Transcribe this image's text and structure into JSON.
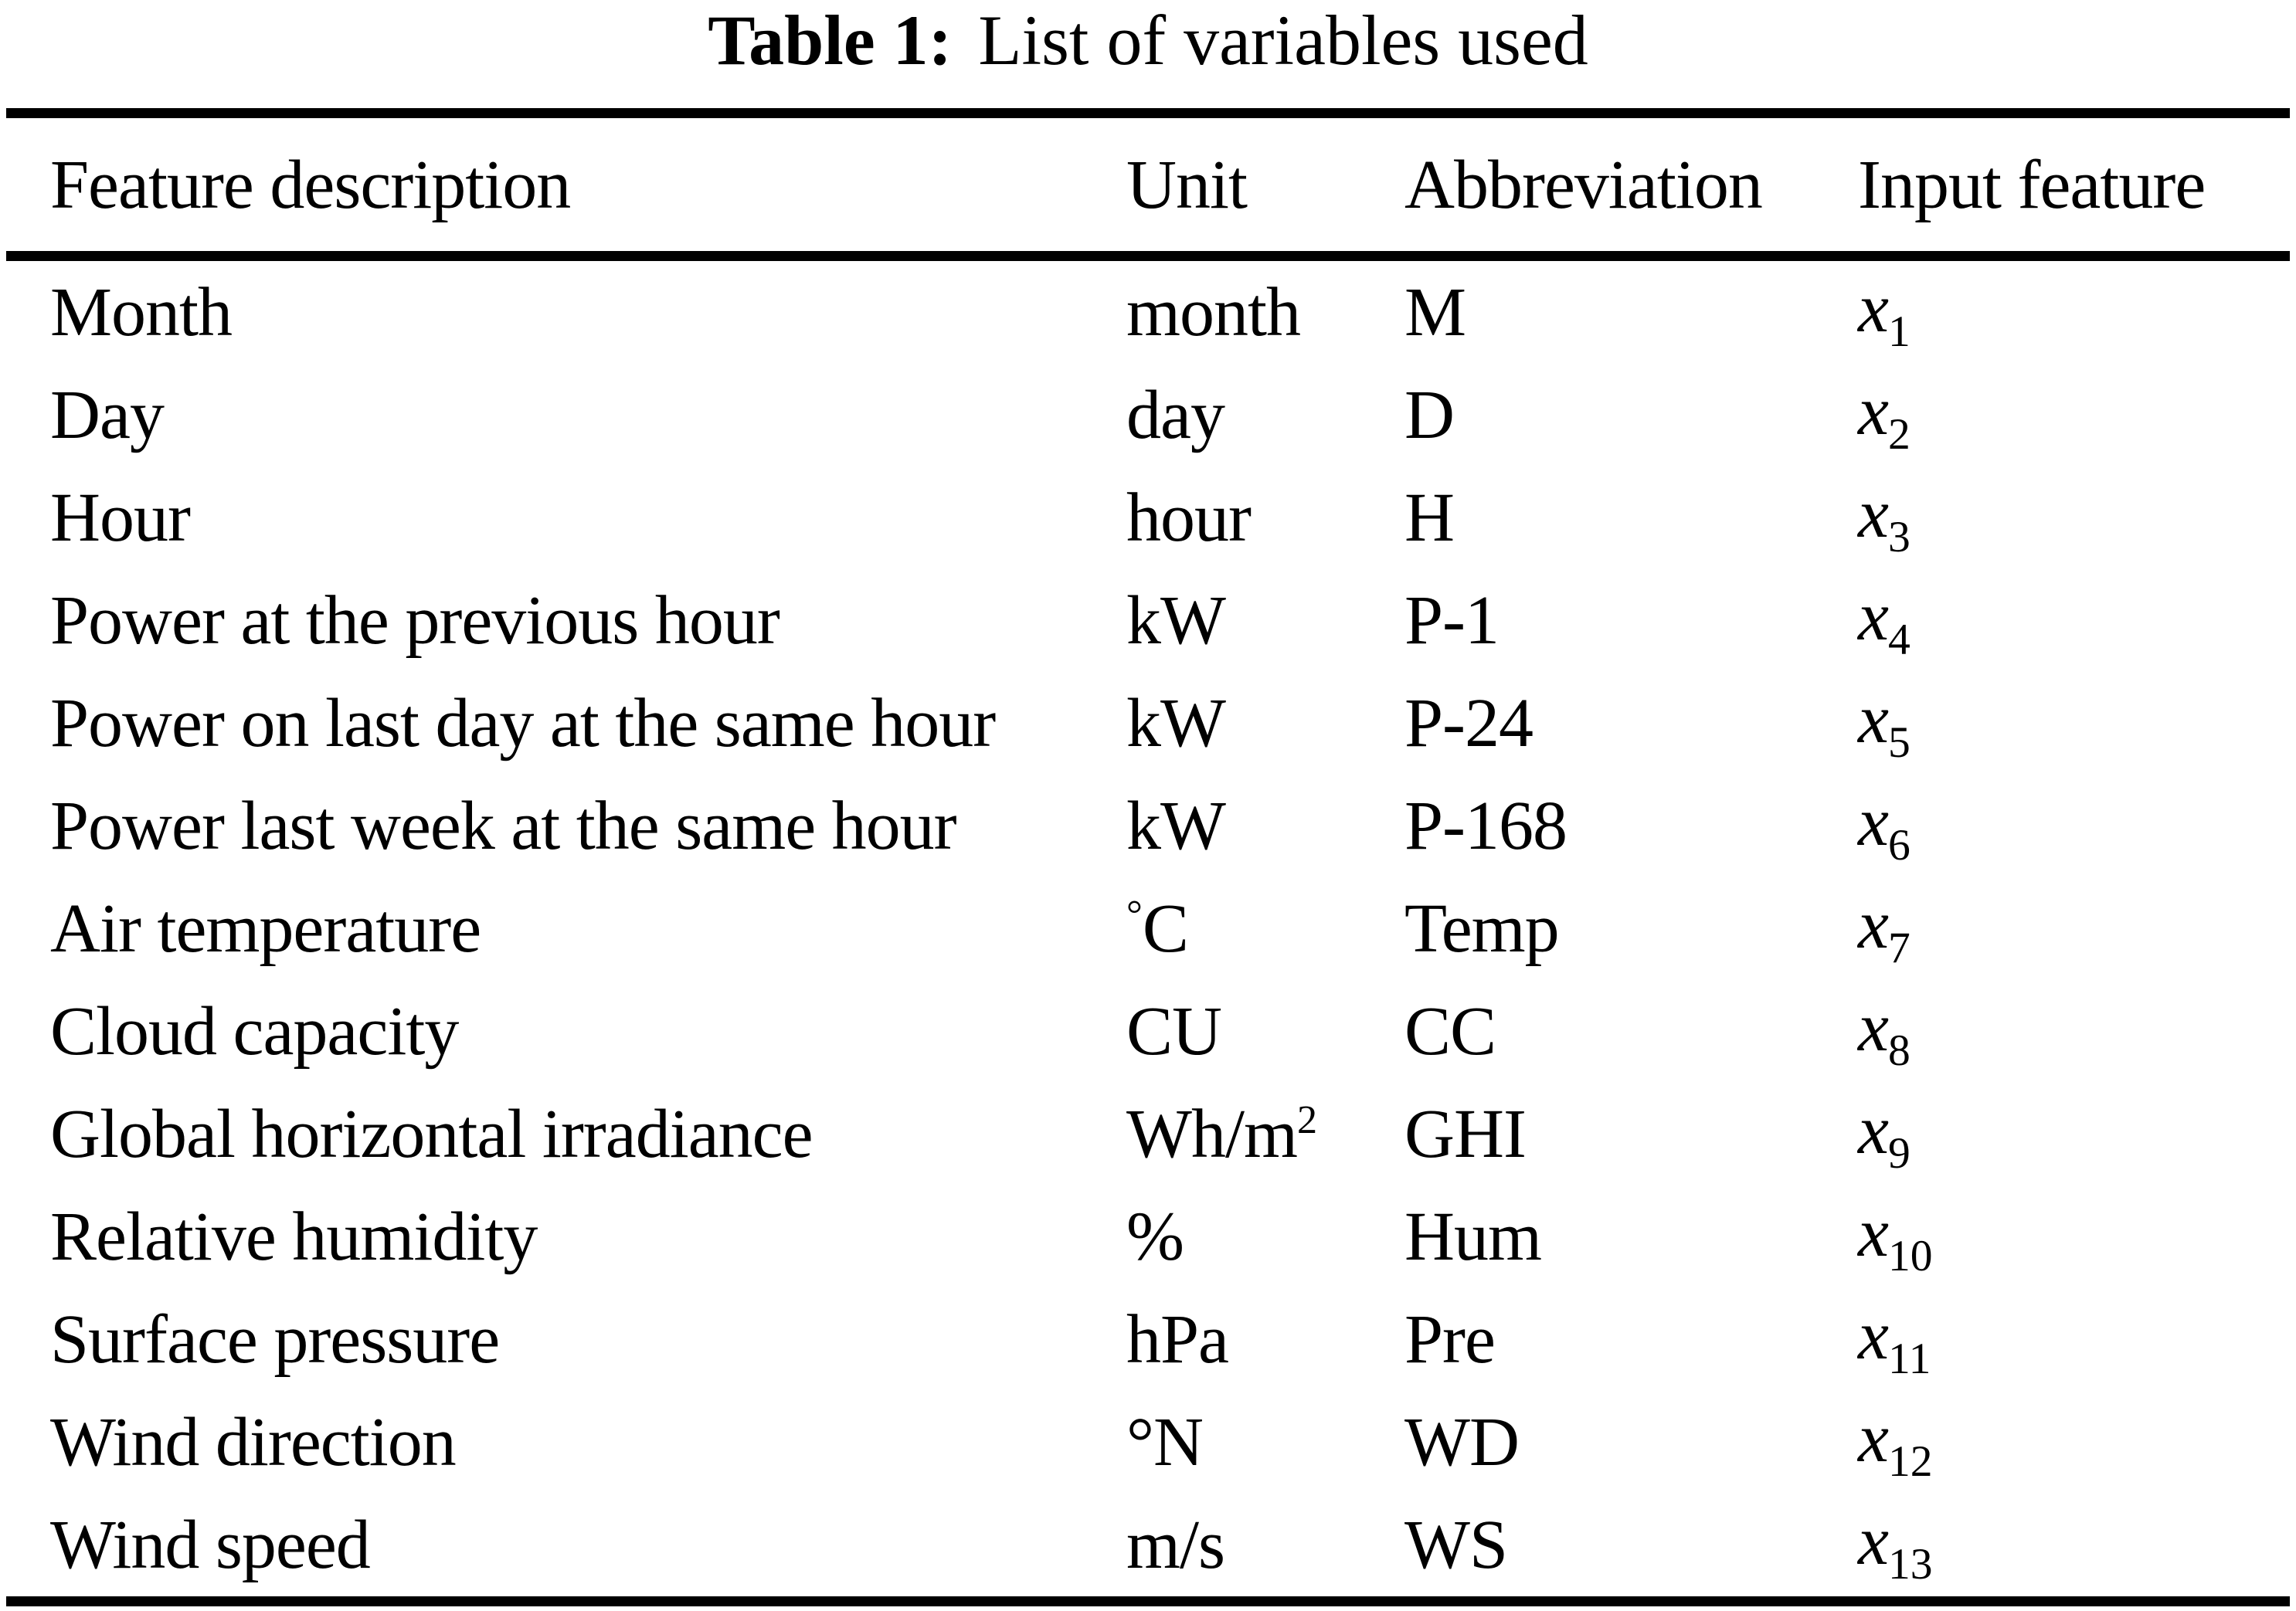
{
  "title": {
    "label": "Table 1:",
    "text": "List of variables used"
  },
  "table": {
    "columns": [
      "Feature description",
      "Unit",
      "Abbreviation",
      "Input feature"
    ],
    "rows": [
      {
        "feature": [
          {
            "style": "plain",
            "text": "Month"
          }
        ],
        "unit": [
          {
            "style": "plain",
            "text": "month"
          }
        ],
        "abbreviation": [
          {
            "style": "plain",
            "text": "M"
          }
        ],
        "input_feature": [
          {
            "style": "italic",
            "text": "x"
          },
          {
            "style": "sub",
            "text": "1"
          }
        ]
      },
      {
        "feature": [
          {
            "style": "plain",
            "text": "Day"
          }
        ],
        "unit": [
          {
            "style": "plain",
            "text": "day"
          }
        ],
        "abbreviation": [
          {
            "style": "plain",
            "text": "D"
          }
        ],
        "input_feature": [
          {
            "style": "italic",
            "text": "x"
          },
          {
            "style": "sub",
            "text": "2"
          }
        ]
      },
      {
        "feature": [
          {
            "style": "plain",
            "text": "Hour"
          }
        ],
        "unit": [
          {
            "style": "plain",
            "text": "hour"
          }
        ],
        "abbreviation": [
          {
            "style": "plain",
            "text": "H"
          }
        ],
        "input_feature": [
          {
            "style": "italic",
            "text": "x"
          },
          {
            "style": "sub",
            "text": "3"
          }
        ]
      },
      {
        "feature": [
          {
            "style": "plain",
            "text": "Power at the previous hour"
          }
        ],
        "unit": [
          {
            "style": "plain",
            "text": "kW"
          }
        ],
        "abbreviation": [
          {
            "style": "plain",
            "text": "P-1"
          }
        ],
        "input_feature": [
          {
            "style": "italic",
            "text": "x"
          },
          {
            "style": "sub",
            "text": "4"
          }
        ]
      },
      {
        "feature": [
          {
            "style": "plain",
            "text": "Power on last day at the same hour"
          }
        ],
        "unit": [
          {
            "style": "plain",
            "text": "kW"
          }
        ],
        "abbreviation": [
          {
            "style": "plain",
            "text": "P-24"
          }
        ],
        "input_feature": [
          {
            "style": "italic",
            "text": "x"
          },
          {
            "style": "sub",
            "text": "5"
          }
        ]
      },
      {
        "feature": [
          {
            "style": "plain",
            "text": "Power last week at the same hour"
          }
        ],
        "unit": [
          {
            "style": "plain",
            "text": "kW"
          }
        ],
        "abbreviation": [
          {
            "style": "plain",
            "text": "P-168"
          }
        ],
        "input_feature": [
          {
            "style": "italic",
            "text": "x"
          },
          {
            "style": "sub",
            "text": "6"
          }
        ]
      },
      {
        "feature": [
          {
            "style": "plain",
            "text": "Air temperature"
          }
        ],
        "unit": [
          {
            "style": "sup",
            "text": "°"
          },
          {
            "style": "plain",
            "text": "C"
          }
        ],
        "abbreviation": [
          {
            "style": "plain",
            "text": "Temp"
          }
        ],
        "input_feature": [
          {
            "style": "italic",
            "text": "x"
          },
          {
            "style": "sub",
            "text": "7"
          }
        ]
      },
      {
        "feature": [
          {
            "style": "plain",
            "text": "Cloud capacity"
          }
        ],
        "unit": [
          {
            "style": "plain",
            "text": "CU"
          }
        ],
        "abbreviation": [
          {
            "style": "plain",
            "text": "CC"
          }
        ],
        "input_feature": [
          {
            "style": "italic",
            "text": "x"
          },
          {
            "style": "sub",
            "text": "8"
          }
        ]
      },
      {
        "feature": [
          {
            "style": "plain",
            "text": "Global horizontal irradiance"
          }
        ],
        "unit": [
          {
            "style": "plain",
            "text": "Wh/m"
          },
          {
            "style": "sup",
            "text": "2"
          }
        ],
        "abbreviation": [
          {
            "style": "plain",
            "text": "GHI"
          }
        ],
        "input_feature": [
          {
            "style": "italic",
            "text": "x"
          },
          {
            "style": "sub",
            "text": "9"
          }
        ]
      },
      {
        "feature": [
          {
            "style": "plain",
            "text": "Relative humidity"
          }
        ],
        "unit": [
          {
            "style": "plain",
            "text": "%"
          }
        ],
        "abbreviation": [
          {
            "style": "plain",
            "text": "Hum"
          }
        ],
        "input_feature": [
          {
            "style": "italic",
            "text": "x"
          },
          {
            "style": "sub",
            "text": "10"
          }
        ]
      },
      {
        "feature": [
          {
            "style": "plain",
            "text": "Surface pressure"
          }
        ],
        "unit": [
          {
            "style": "plain",
            "text": "hPa"
          }
        ],
        "abbreviation": [
          {
            "style": "plain",
            "text": "Pre"
          }
        ],
        "input_feature": [
          {
            "style": "italic",
            "text": "x"
          },
          {
            "style": "sub",
            "text": "11"
          }
        ]
      },
      {
        "feature": [
          {
            "style": "plain",
            "text": "Wind direction"
          }
        ],
        "unit": [
          {
            "style": "plain",
            "text": "°N"
          }
        ],
        "abbreviation": [
          {
            "style": "plain",
            "text": "WD"
          }
        ],
        "input_feature": [
          {
            "style": "italic",
            "text": "x"
          },
          {
            "style": "sub",
            "text": "12"
          }
        ]
      },
      {
        "feature": [
          {
            "style": "plain",
            "text": "Wind speed"
          }
        ],
        "unit": [
          {
            "style": "plain",
            "text": "m/s"
          }
        ],
        "abbreviation": [
          {
            "style": "plain",
            "text": "WS"
          }
        ],
        "input_feature": [
          {
            "style": "italic",
            "text": "x"
          },
          {
            "style": "sub",
            "text": "13"
          }
        ]
      }
    ]
  }
}
